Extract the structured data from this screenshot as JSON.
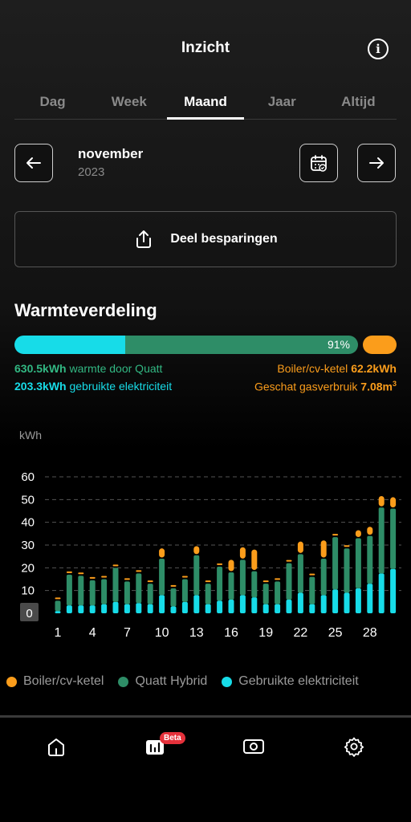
{
  "header": {
    "title": "Inzicht",
    "info_icon": "i"
  },
  "tabs": [
    {
      "label": "Dag",
      "active": false
    },
    {
      "label": "Week",
      "active": false
    },
    {
      "label": "Maand",
      "active": true
    },
    {
      "label": "Jaar",
      "active": false
    },
    {
      "label": "Altijd",
      "active": false
    }
  ],
  "period": {
    "month": "november",
    "year": "2023"
  },
  "share": {
    "label": "Deel besparingen"
  },
  "distribution": {
    "title": "Warmteverdeling",
    "percent_label": "91%",
    "quatt_value": "630.5kWh",
    "quatt_text": "warmte door Quatt",
    "elec_value": "203.3kWh",
    "elec_text": "gebruikte elektriciteit",
    "boiler_text": "Boiler/cv-ketel",
    "boiler_value": "62.2kWh",
    "gas_text": "Geschat gasverbruik",
    "gas_value": "7.08m",
    "gas_unit_sup": "3"
  },
  "colors": {
    "boiler": "#fb9d1b",
    "quatt": "#2e8d67",
    "electricity": "#17dce8"
  },
  "chart_data": {
    "type": "bar",
    "stacked": true,
    "ylabel": "kWh",
    "ylim": [
      0,
      60
    ],
    "yticks": [
      0,
      10,
      20,
      30,
      40,
      50,
      60
    ],
    "xtick_labels": [
      "1",
      "4",
      "7",
      "10",
      "13",
      "16",
      "19",
      "22",
      "25",
      "28"
    ],
    "categories": [
      1,
      2,
      3,
      4,
      5,
      6,
      7,
      8,
      9,
      10,
      11,
      12,
      13,
      14,
      15,
      16,
      17,
      18,
      19,
      20,
      21,
      22,
      23,
      24,
      25,
      26,
      27,
      28,
      29,
      30
    ],
    "series": [
      {
        "name": "Gebruikte elektriciteit",
        "color": "#17dce8",
        "values": [
          1,
          3.5,
          3.5,
          3.5,
          4,
          5,
          4,
          4.5,
          4,
          8,
          3,
          5,
          8,
          4,
          5.5,
          6,
          8,
          7,
          4,
          4,
          6,
          9,
          4,
          8,
          10.5,
          9,
          11,
          13,
          17.5,
          19.5
        ]
      },
      {
        "name": "Quatt Hybrid",
        "color": "#2e8d67",
        "values": [
          4.5,
          13.5,
          13,
          11,
          11,
          15,
          10,
          13,
          9,
          16,
          8,
          10,
          17.5,
          9,
          15,
          12,
          15.5,
          11.5,
          9,
          10,
          16,
          17,
          12,
          16,
          23,
          19.5,
          22,
          21,
          29,
          26.5
        ]
      },
      {
        "name": "Boiler/cv-ketel",
        "color": "#fb9d1b",
        "values": [
          0,
          0,
          0,
          0,
          0,
          0,
          0,
          0,
          0,
          4,
          0,
          0,
          3.5,
          0,
          0,
          5,
          5,
          9,
          0,
          0,
          0,
          5,
          0,
          7.5,
          0,
          0,
          3,
          3.5,
          4.5,
          4.5
        ]
      }
    ]
  },
  "legend": [
    {
      "label": "Boiler/cv-ketel",
      "color": "#fb9d1b"
    },
    {
      "label": "Quatt Hybrid",
      "color": "#2e8d67"
    },
    {
      "label": "Gebruikte elektriciteit",
      "color": "#17dce8"
    }
  ],
  "bottom_nav": {
    "badge": "Beta",
    "items": [
      "home-icon",
      "insights-icon",
      "camera-icon",
      "settings-icon"
    ]
  }
}
